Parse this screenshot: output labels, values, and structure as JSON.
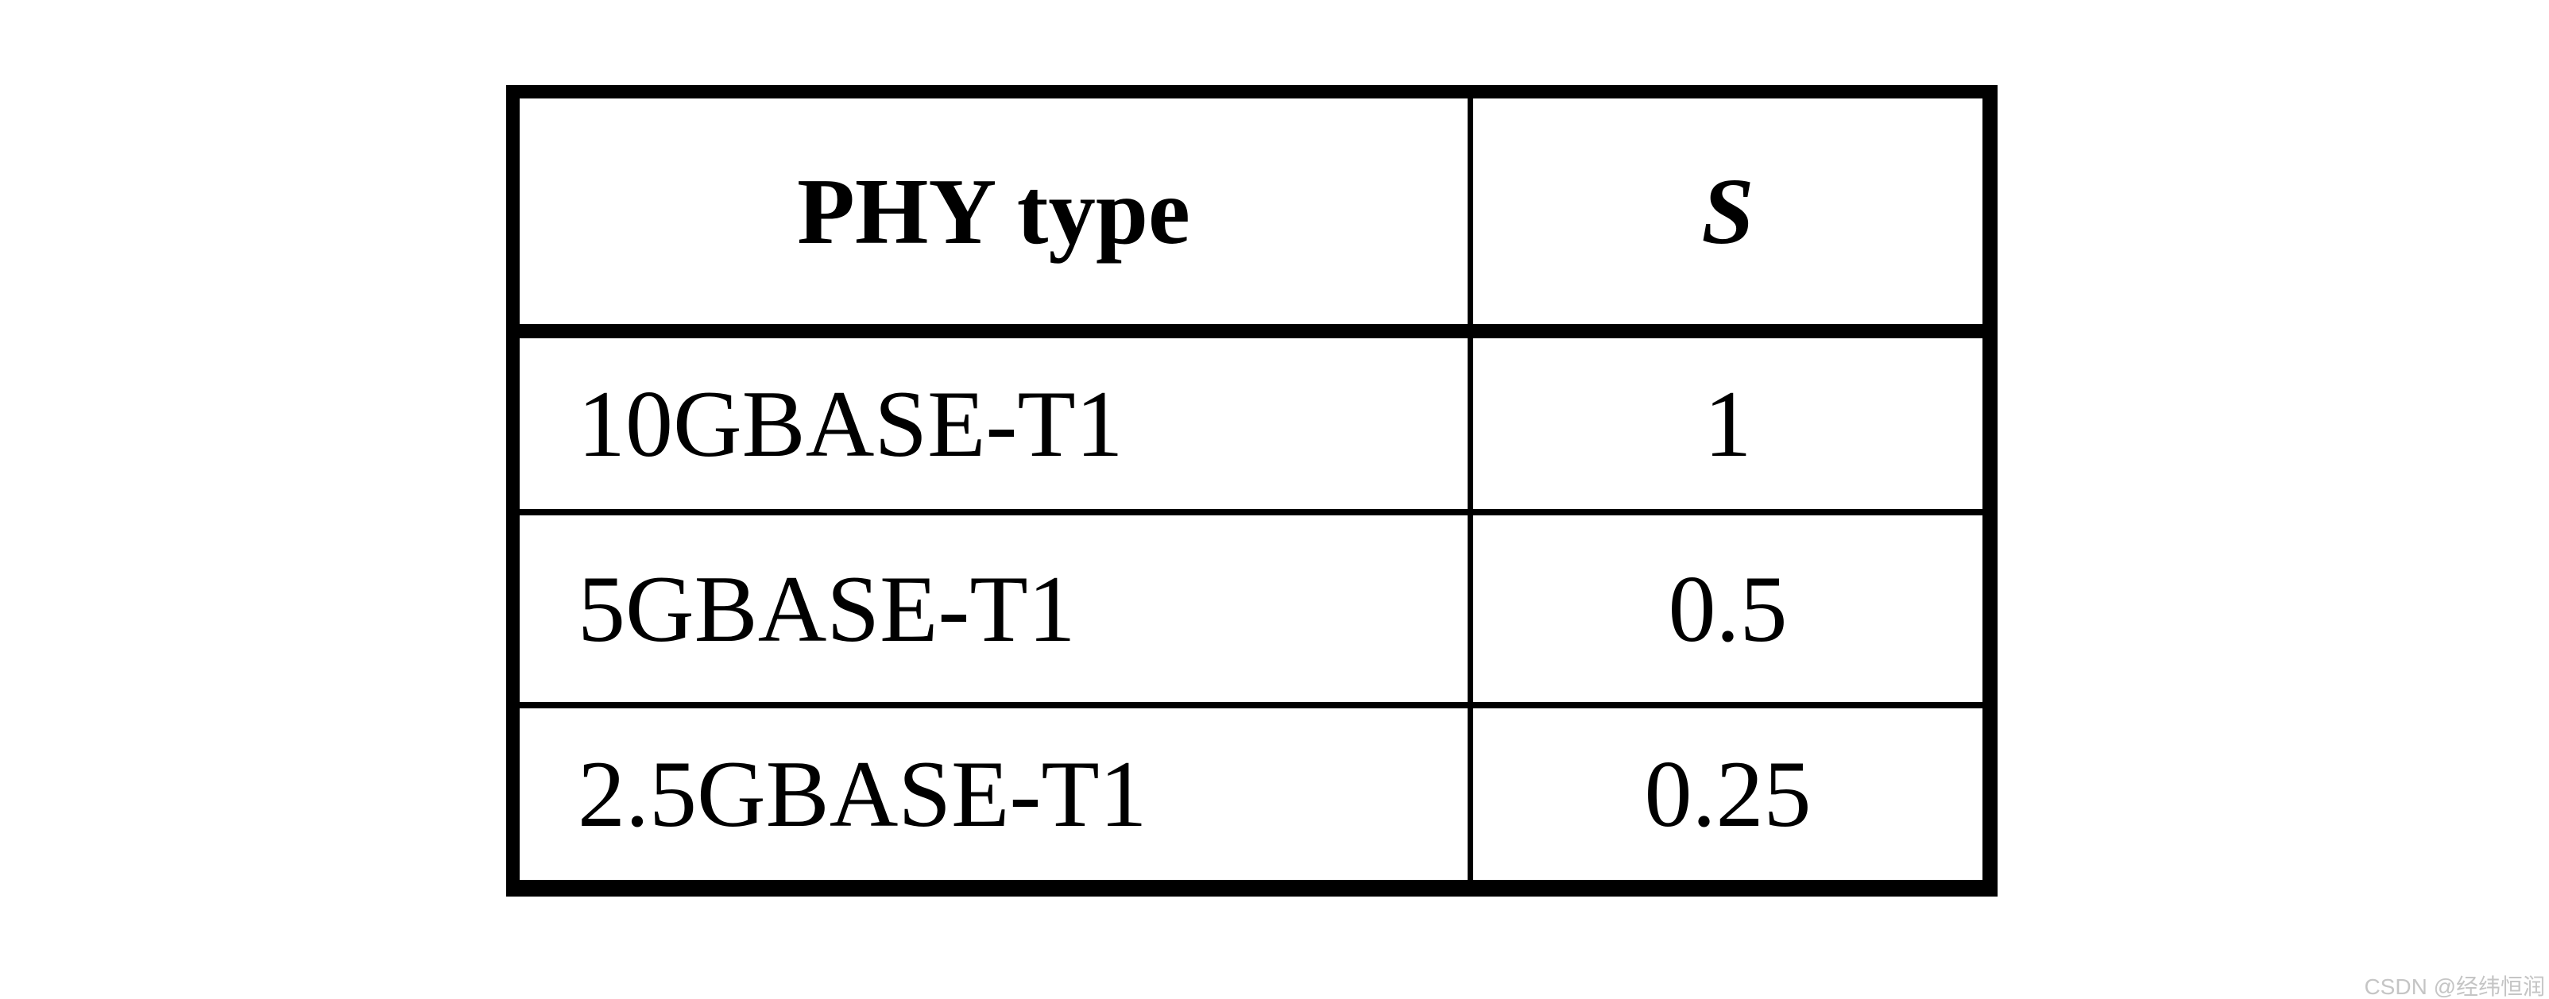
{
  "page": {
    "background": "#ffffff",
    "text_color": "#000000",
    "border_color": "#000000"
  },
  "table": {
    "headers": [
      {
        "label": "PHY type",
        "style": "bold"
      },
      {
        "label": "S",
        "style": "bold-italic"
      }
    ],
    "rows": [
      {
        "phy_type": "10GBASE-T1",
        "s": "1"
      },
      {
        "phy_type": "5GBASE-T1",
        "s": "0.5"
      },
      {
        "phy_type": "2.5GBASE-T1",
        "s": "0.25"
      }
    ]
  },
  "chart_data": {
    "type": "table",
    "columns": [
      "PHY type",
      "S"
    ],
    "rows": [
      [
        "10GBASE-T1",
        "1"
      ],
      [
        "5GBASE-T1",
        "0.5"
      ],
      [
        "2.5GBASE-T1",
        "0.25"
      ]
    ],
    "title": ""
  },
  "watermark": {
    "text": "CSDN @经纬恒润",
    "color": "#c5c5c5"
  }
}
